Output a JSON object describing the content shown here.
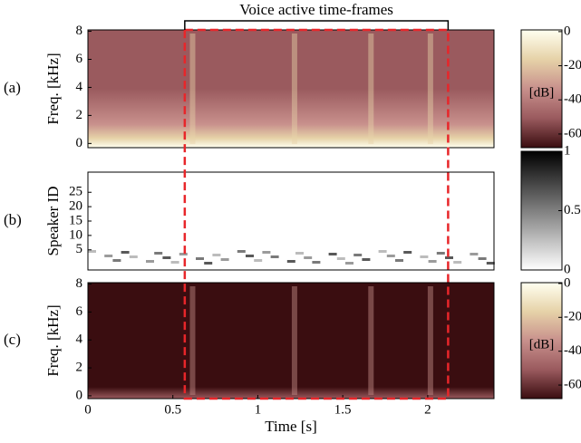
{
  "chart_data": [
    {
      "type": "heatmap",
      "panel_label": "(a)",
      "ylabel": "Freq. [kHz]",
      "xlim": [
        0,
        2.39
      ],
      "ylim": [
        -0.3,
        8.1
      ],
      "yticks": [
        0,
        2,
        4,
        6,
        8
      ],
      "colorbar": {
        "label": "[dB]",
        "lim": [
          -68,
          1
        ],
        "ticks": [
          0,
          -20,
          -40,
          -60
        ]
      },
      "colormap": [
        "#3a0d10",
        "#9a5a5e",
        "#c8908c",
        "#e6d2a8",
        "#fffff0"
      ],
      "annotation": "Voice active time-frames",
      "highlight_xlim": [
        0.57,
        2.12
      ],
      "highlight_color": "#e8262a"
    },
    {
      "type": "heatmap",
      "panel_label": "(b)",
      "ylabel": "Speaker ID",
      "xlim": [
        0,
        2.39
      ],
      "ylim": [
        -2,
        32
      ],
      "yticks": [
        5,
        10,
        15,
        20,
        25
      ],
      "colorbar": {
        "lim": [
          0,
          1
        ],
        "ticks": [
          0,
          0.5,
          1
        ]
      },
      "colormap": [
        "#ffffff",
        "#000000"
      ]
    },
    {
      "type": "heatmap",
      "panel_label": "(c)",
      "ylabel": "Freq. [kHz]",
      "xlabel": "Time [s]",
      "xlim": [
        0,
        2.39
      ],
      "ylim": [
        -0.2,
        8.1
      ],
      "xticks": [
        0,
        0.5,
        1,
        1.5,
        2
      ],
      "yticks": [
        0,
        2,
        4,
        6,
        8
      ],
      "colorbar": {
        "label": "[dB]",
        "lim": [
          -68,
          0.5
        ],
        "ticks": [
          0,
          -20,
          -40,
          -60
        ]
      },
      "colormap": [
        "#3a0d10",
        "#9a5a5e",
        "#c8908c",
        "#e6d2a8",
        "#fffff0"
      ]
    }
  ]
}
